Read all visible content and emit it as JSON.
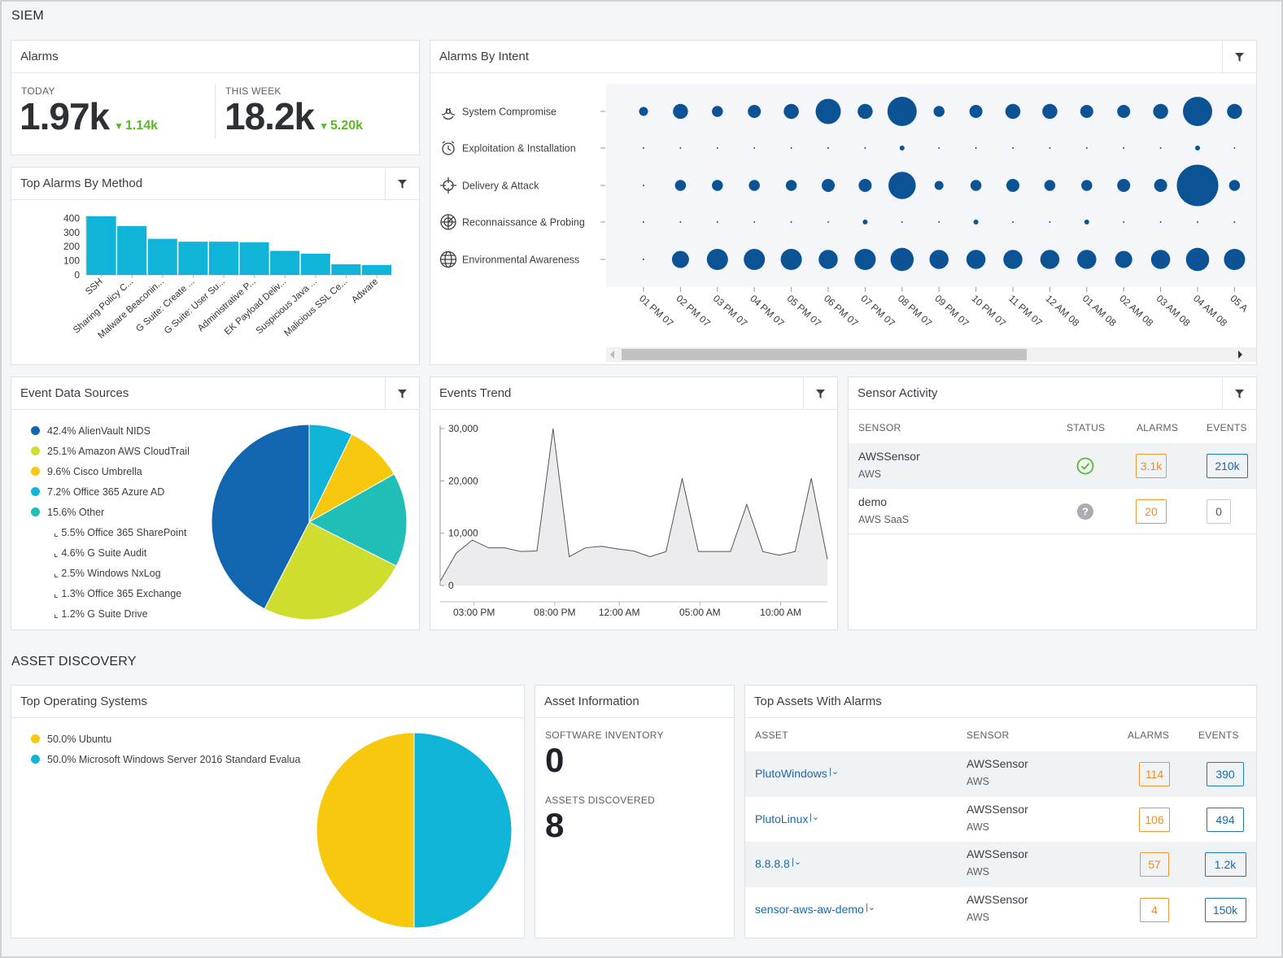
{
  "siem_title": "SIEM",
  "asset_title": "ASSET DISCOVERY",
  "alarms": {
    "title": "Alarms",
    "today_label": "TODAY",
    "today_value": "1.97k",
    "today_delta": "1.14k",
    "week_label": "THIS WEEK",
    "week_value": "18.2k",
    "week_delta": "5.20k"
  },
  "method": {
    "title": "Top Alarms By Method",
    "filter_icon": "filter-icon"
  },
  "intent": {
    "title": "Alarms By Intent",
    "rows": [
      "System Compromise",
      "Exploitation & Installation",
      "Delivery & Attack",
      "Reconnaissance & Probing",
      "Environmental Awareness"
    ],
    "row_icons": [
      "biohazard-icon",
      "alarm-clock-icon",
      "crosshair-icon",
      "radar-icon",
      "globe-icon"
    ]
  },
  "sources": {
    "title": "Event Data Sources",
    "legend": [
      {
        "label": "42.4% AlienVault NIDS",
        "color": "#1266b0"
      },
      {
        "label": "25.1% Amazon AWS CloudTrail",
        "color": "#cfde2e"
      },
      {
        "label": "9.6% Cisco Umbrella",
        "color": "#f7c80d"
      },
      {
        "label": "7.2% Office 365 Azure AD",
        "color": "#10b4d9"
      },
      {
        "label": "15.6% Other",
        "color": "#1fbfb8"
      }
    ],
    "sub": [
      "⌞ 5.5% Office 365 SharePoint",
      "⌞ 4.6% G Suite Audit",
      "⌞ 2.5% Windows NxLog",
      "⌞ 1.3% Office 365 Exchange",
      "⌞ 1.2% G Suite Drive"
    ]
  },
  "trend": {
    "title": "Events Trend"
  },
  "sensor": {
    "title": "Sensor Activity",
    "headers": [
      "SENSOR",
      "STATUS",
      "ALARMS",
      "EVENTS"
    ],
    "rows": [
      {
        "name": "AWSSensor",
        "type": "AWS",
        "status": "ok",
        "alarms": "3.1k",
        "events": "210k"
      },
      {
        "name": "demo",
        "type": "AWS SaaS",
        "status": "unknown",
        "alarms": "20",
        "events": "0"
      }
    ]
  },
  "os": {
    "title": "Top Operating Systems",
    "legend": [
      {
        "label": "50.0% Ubuntu",
        "color": "#f7c80d"
      },
      {
        "label": "50.0% Microsoft Windows Server 2016 Standard Evalua",
        "color": "#10b4d9"
      }
    ]
  },
  "asset_info": {
    "title": "Asset Information",
    "inv_label": "SOFTWARE INVENTORY",
    "inv_value": "0",
    "disc_label": "ASSETS DISCOVERED",
    "disc_value": "8"
  },
  "top_assets": {
    "title": "Top Assets With Alarms",
    "headers": [
      "ASSET",
      "SENSOR",
      "ALARMS",
      "EVENTS"
    ],
    "rows": [
      {
        "asset": "PlutoWindows",
        "sensor": "AWSSensor",
        "sensor_type": "AWS",
        "alarms": "114",
        "events": "390"
      },
      {
        "asset": "PlutoLinux",
        "sensor": "AWSSensor",
        "sensor_type": "AWS",
        "alarms": "106",
        "events": "494"
      },
      {
        "asset": "8.8.8.8",
        "sensor": "AWSSensor",
        "sensor_type": "AWS",
        "alarms": "57",
        "events": "1.2k"
      },
      {
        "asset": "sensor-aws-aw-demo",
        "sensor": "AWSSensor",
        "sensor_type": "AWS",
        "alarms": "4",
        "events": "150k"
      }
    ]
  },
  "chart_data": [
    {
      "type": "bar",
      "title": "Top Alarms By Method",
      "categories": [
        "SSH",
        "Sharing Policy C...",
        "Malware Beaconin...",
        "G Suite: Create ...",
        "G Suite: User Su...",
        "Administrative P...",
        "EK Payload Deliv...",
        "Suspicious Java ...",
        "Malicious SSL Ce...",
        "Adware"
      ],
      "values": [
        415,
        345,
        255,
        235,
        235,
        230,
        170,
        150,
        75,
        70
      ],
      "yticks": [
        "0",
        "100",
        "200",
        "300",
        "400"
      ],
      "ylim": [
        0,
        420
      ],
      "color": "#10b4d9"
    },
    {
      "type": "scatter",
      "title": "Alarms By Intent",
      "x_labels": [
        "01 PM 07",
        "02 PM 07",
        "03 PM 07",
        "04 PM 07",
        "05 PM 07",
        "06 PM 07",
        "07 PM 07",
        "08 PM 07",
        "09 PM 07",
        "10 PM 07",
        "11 PM 07",
        "12 AM 08",
        "01 AM 08",
        "02 AM 08",
        "03 AM 08",
        "04 AM 08",
        "05 A"
      ],
      "series": [
        {
          "name": "System Compromise",
          "values": [
            2,
            5,
            3,
            4,
            5,
            10,
            5,
            12,
            3,
            4,
            5,
            5,
            4,
            4,
            5,
            12,
            5
          ]
        },
        {
          "name": "Exploitation & Installation",
          "values": [
            0,
            0,
            0,
            0,
            0,
            0,
            0,
            0.4,
            0,
            0,
            0,
            0,
            0,
            0,
            0,
            0.4,
            0
          ]
        },
        {
          "name": "Delivery & Attack",
          "values": [
            0,
            3,
            3,
            3,
            3,
            4,
            4,
            11,
            2,
            3,
            4,
            3,
            3,
            4,
            4,
            18,
            3
          ]
        },
        {
          "name": "Reconnaissance & Probing",
          "values": [
            0,
            0,
            0,
            0,
            0,
            0,
            0.4,
            0,
            0,
            0.4,
            0,
            0,
            0.4,
            0,
            0,
            0,
            0
          ]
        },
        {
          "name": "Environmental Awareness",
          "values": [
            0,
            6,
            8,
            8,
            8,
            7,
            8,
            9,
            7,
            7,
            7,
            7,
            7,
            6,
            7,
            9,
            8
          ]
        }
      ],
      "color": "#0b5394"
    },
    {
      "type": "pie",
      "title": "Event Data Sources",
      "labels": [
        "AlienVault NIDS",
        "Amazon AWS CloudTrail",
        "Cisco Umbrella",
        "Office 365 Azure AD",
        "Other"
      ],
      "values": [
        42.4,
        25.1,
        9.6,
        7.2,
        15.6
      ],
      "colors": [
        "#1266b0",
        "#cfde2e",
        "#f7c80d",
        "#10b4d9",
        "#1fbfb8"
      ]
    },
    {
      "type": "area",
      "title": "Events Trend",
      "y": [
        800,
        6200,
        8700,
        7200,
        7200,
        6500,
        6600,
        30000,
        5500,
        7200,
        7500,
        7000,
        6600,
        5500,
        6500,
        20500,
        6500,
        6500,
        6500,
        15500,
        6500,
        5800,
        6500,
        20500,
        5000
      ],
      "x_tick_labels": [
        "03:00 PM",
        "08:00 PM",
        "12:00 AM",
        "05:00 AM",
        "10:00 AM"
      ],
      "x_tick_index": [
        2,
        7,
        11,
        16,
        21
      ],
      "yticks": [
        "0",
        "10,000",
        "20,000",
        "30,000"
      ],
      "ylim": [
        0,
        30000
      ]
    },
    {
      "type": "pie",
      "title": "Top Operating Systems",
      "labels": [
        "Ubuntu",
        "Microsoft Windows Server 2016 Standard Evalua"
      ],
      "values": [
        50,
        50
      ],
      "colors": [
        "#f7c80d",
        "#10b4d9"
      ]
    }
  ]
}
